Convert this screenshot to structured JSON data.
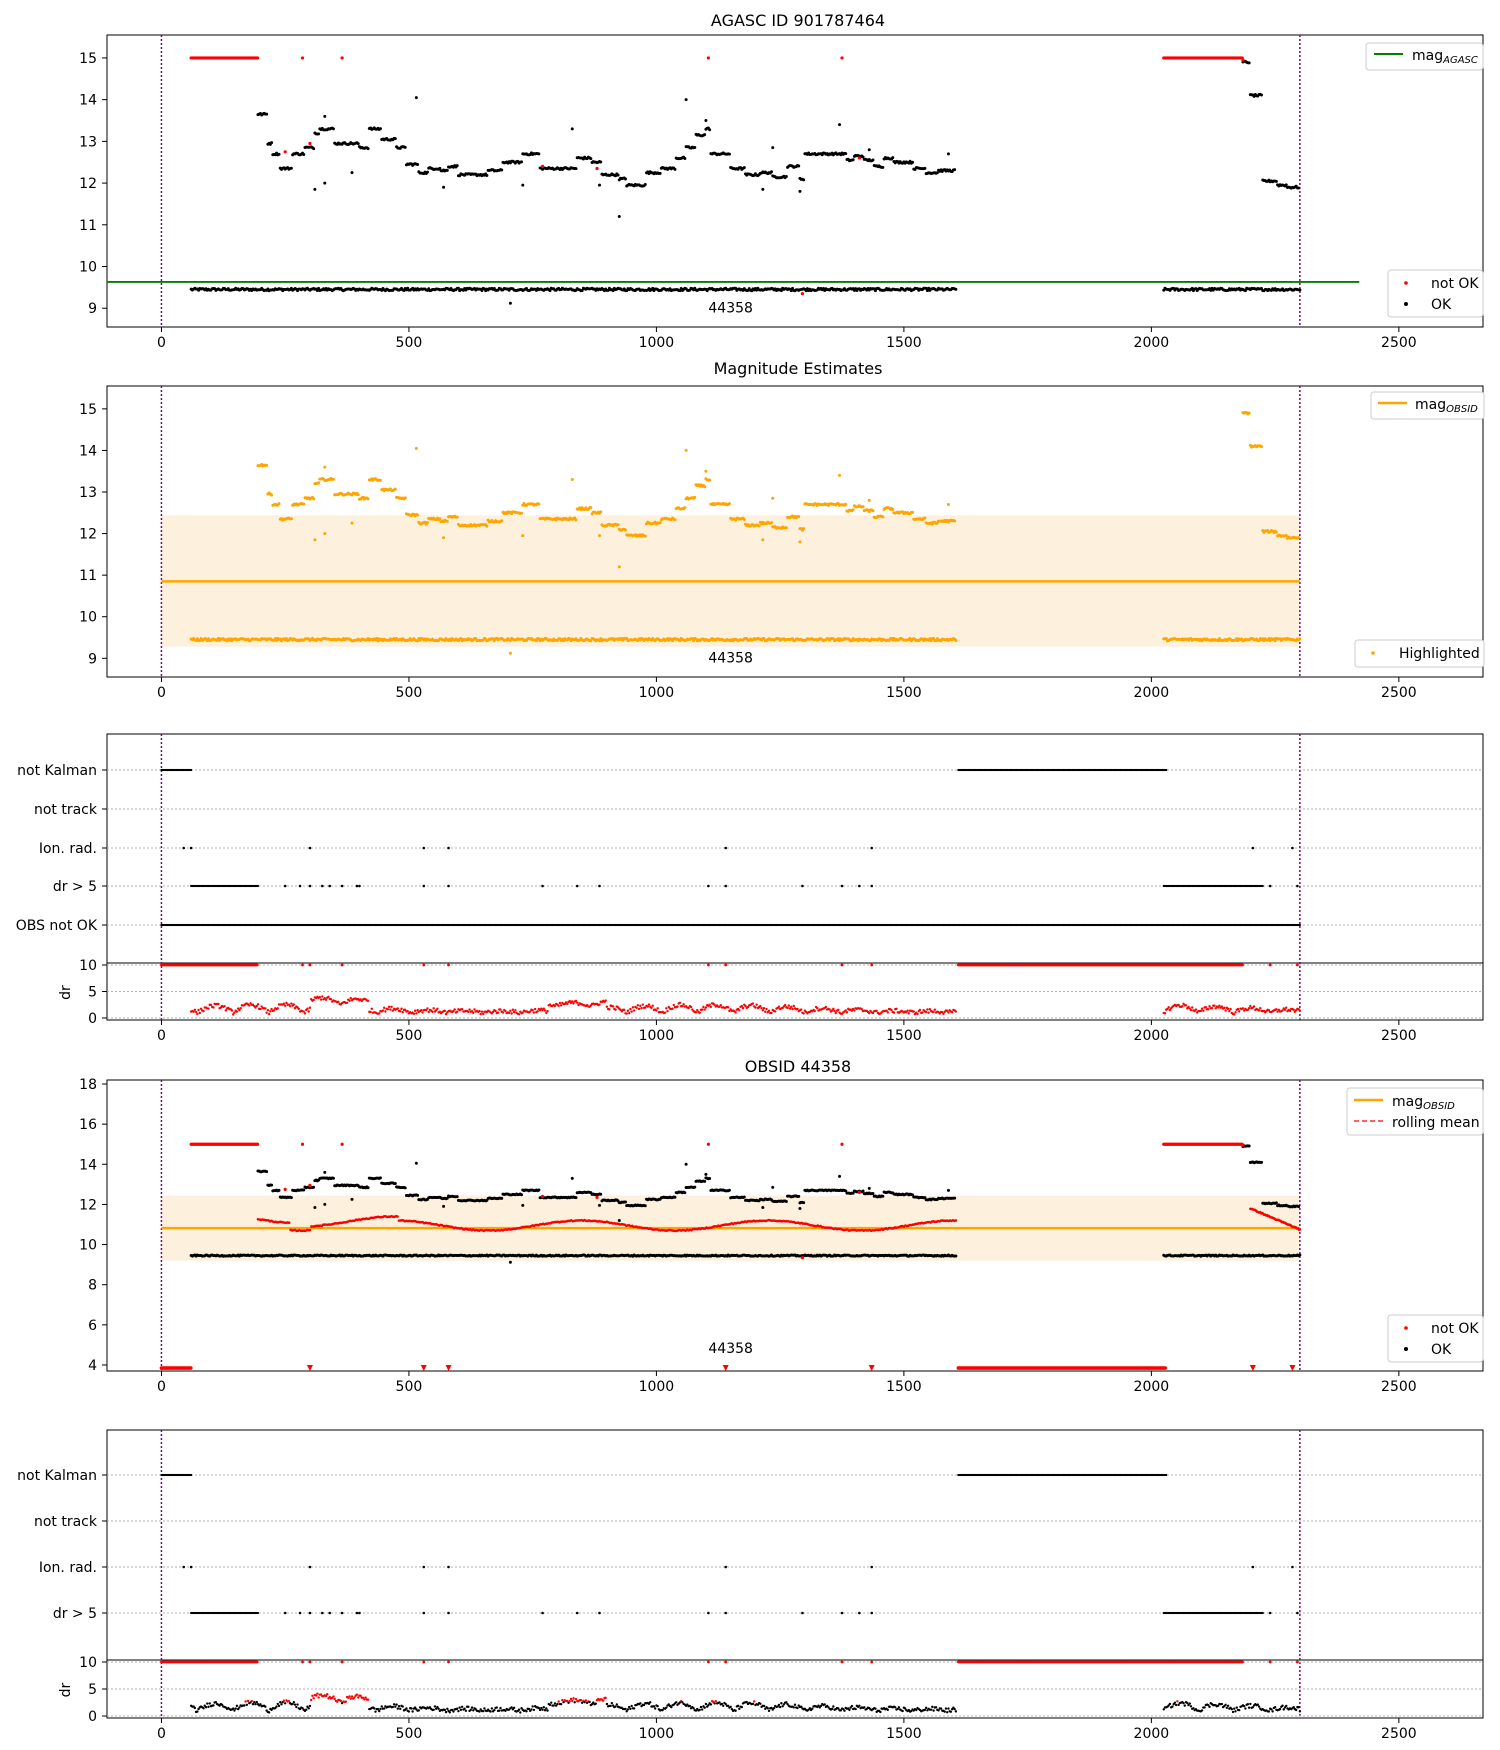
{
  "colors": {
    "ok": "#000000",
    "not_ok": "#ff0000",
    "agasc_line": "#008000",
    "obsid_line": "#ffa500",
    "band": "#fdf1dd",
    "boundary": "#800080",
    "grid": "#b0b0b0"
  },
  "chart_data": [
    {
      "type": "scatter",
      "title": "AGASC ID 901787464",
      "xlim": [
        -110,
        2670
      ],
      "ylim": [
        8.55,
        15.55
      ],
      "xticks": [
        0,
        500,
        1000,
        1500,
        2000,
        2500
      ],
      "yticks": [
        9,
        10,
        11,
        12,
        13,
        14,
        15
      ],
      "hline": {
        "y": 9.63,
        "x": [
          -110,
          2420
        ],
        "label": "mag",
        "label_sub": "AGASC"
      },
      "annotation": {
        "text": "44358",
        "x": 1150,
        "y": 8.9
      },
      "obsid_bounds": [
        0,
        2300
      ],
      "legend_top": [
        "mag_AGASC"
      ],
      "legend_bottom": [
        "not OK",
        "OK"
      ],
      "series": [
        {
          "name": "OK",
          "x": [
            60,
            1605
          ],
          "y": 9.45,
          "kind": "faint-run"
        },
        {
          "name": "OK",
          "x": [
            2025,
            2300
          ],
          "y": 9.44,
          "kind": "faint-run"
        }
      ]
    },
    {
      "type": "scatter",
      "title": "Magnitude Estimates",
      "xlim": [
        -110,
        2670
      ],
      "ylim": [
        8.55,
        15.55
      ],
      "xticks": [
        0,
        500,
        1000,
        1500,
        2000,
        2500
      ],
      "yticks": [
        9,
        10,
        11,
        12,
        13,
        14,
        15
      ],
      "mean_line": {
        "y": 10.85,
        "x": [
          0,
          2300
        ]
      },
      "band": {
        "y": [
          9.28,
          12.44
        ],
        "x": [
          0,
          2300
        ]
      },
      "annotation": {
        "text": "44358",
        "x": 1150,
        "y": 8.9
      },
      "legend_top": [
        "mag_OBSID"
      ],
      "legend_bottom": [
        "Highlighted"
      ]
    },
    {
      "type": "scatter",
      "title": "",
      "flags": [
        "not Kalman",
        "not track",
        "Ion. rad.",
        "dr > 5",
        "OBS not OK"
      ],
      "not_kalman_ranges": [
        [
          0,
          60
        ],
        [
          1610,
          2030
        ]
      ],
      "dr5_ranges": [
        [
          60,
          195
        ],
        [
          2025,
          2225
        ]
      ],
      "obs_not_ok_range": [
        0,
        2300
      ],
      "ion_rad_x": [
        45,
        60,
        300,
        530,
        580,
        1140,
        1435,
        2205,
        2285
      ],
      "dr5_extra_x": [
        250,
        280,
        300,
        325,
        340,
        365,
        395,
        400,
        530,
        580,
        770,
        840,
        885,
        1105,
        1140,
        1295,
        1375,
        1410,
        1435,
        2240,
        2295
      ],
      "dr_yticks": [
        0,
        5,
        10
      ],
      "dr_ylabel": "dr"
    },
    {
      "type": "scatter",
      "title": "OBSID 44358",
      "xlim": [
        -110,
        2670
      ],
      "ylim": [
        3.7,
        18.2
      ],
      "xticks": [
        0,
        500,
        1000,
        1500,
        2000,
        2500
      ],
      "yticks": [
        4,
        6,
        8,
        10,
        12,
        14,
        16,
        18
      ],
      "mean_line": {
        "y": 10.82,
        "x": [
          0,
          2300
        ]
      },
      "band": {
        "y": [
          9.2,
          12.44
        ],
        "x": [
          0,
          2300
        ]
      },
      "annotation": {
        "text": "44358",
        "x": 1150,
        "y": 4.6
      },
      "legend_top": [
        "mag_OBSID",
        "rolling mean"
      ],
      "legend_bottom": [
        "not OK",
        "OK"
      ]
    },
    {
      "type": "scatter",
      "title": "",
      "flags": [
        "not Kalman",
        "not track",
        "Ion. rad.",
        "dr > 5"
      ],
      "dr_yticks": [
        0,
        5,
        10
      ],
      "dr_ylabel": "dr"
    }
  ],
  "legend": {
    "mag_label": "mag",
    "agasc_sub": "AGASC",
    "obsid_sub": "OBSID",
    "not_ok": "not OK",
    "ok": "OK",
    "highlighted": "Highlighted",
    "rolling_mean": "rolling mean"
  }
}
